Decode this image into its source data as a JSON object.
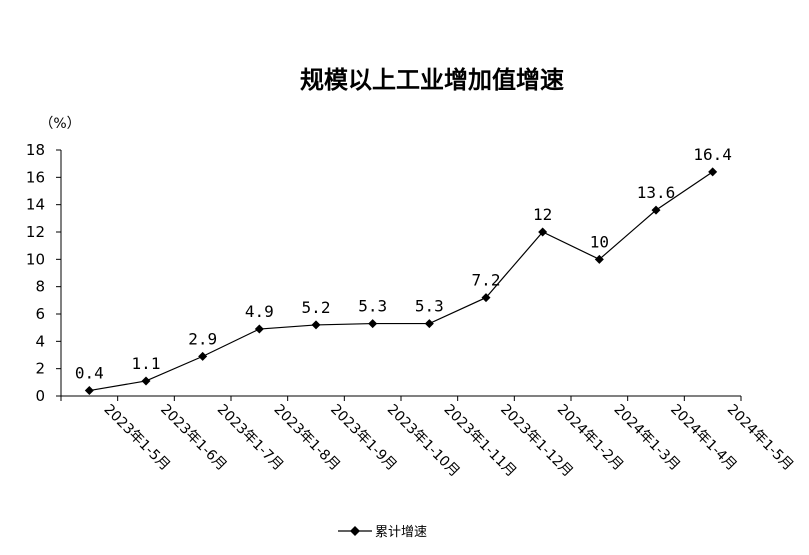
{
  "chart_data": {
    "type": "line",
    "title": "规模以上工业增加值增速",
    "ylabel": "（%）",
    "xlabel": "",
    "ylim": [
      0,
      18
    ],
    "ystep": 2,
    "yticks": [
      "0",
      "2",
      "4",
      "6",
      "8",
      "10",
      "12",
      "14",
      "16",
      "18"
    ],
    "grid": false,
    "legend_position": "bottom-center",
    "categories": [
      "2023年1-5月",
      "2023年1-6月",
      "2023年1-7月",
      "2023年1-8月",
      "2023年1-9月",
      "2023年1-10月",
      "2023年1-11月",
      "2023年1-12月",
      "2024年1-2月",
      "2024年1-3月",
      "2024年1-4月",
      "2024年1-5月"
    ],
    "series": [
      {
        "name": "累计增速",
        "color": "#000000",
        "marker": "diamond",
        "values": [
          0.4,
          1.1,
          2.9,
          4.9,
          5.2,
          5.3,
          5.3,
          7.2,
          12,
          10,
          13.6,
          16.4
        ],
        "labels": [
          "0.4",
          "1.1",
          "2.9",
          "4.9",
          "5.2",
          "5.3",
          "5.3",
          "7.2",
          "12",
          "10",
          "13.6",
          "16.4"
        ]
      }
    ]
  }
}
